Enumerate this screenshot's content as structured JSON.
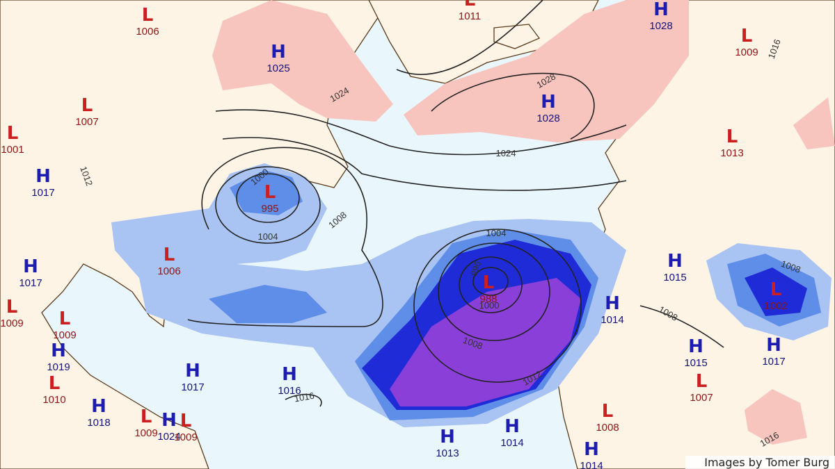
{
  "centers": [
    {
      "type": "L",
      "value": 1006
    },
    {
      "type": "L",
      "value": 1011
    },
    {
      "type": "H",
      "value": 1028
    },
    {
      "type": "L",
      "value": 1009
    },
    {
      "type": "H",
      "value": 1025
    },
    {
      "type": "L",
      "value": 1007
    },
    {
      "type": "H",
      "value": 1028
    },
    {
      "type": "L",
      "value": 1013
    },
    {
      "type": "L",
      "value": 1001
    },
    {
      "type": "H",
      "value": 1017
    },
    {
      "type": "L",
      "value": 995
    },
    {
      "type": "L",
      "value": 1006
    },
    {
      "type": "H",
      "value": 1017
    },
    {
      "type": "H",
      "value": 1015
    },
    {
      "type": "L",
      "value": 988
    },
    {
      "type": "L",
      "value": 1002
    },
    {
      "type": "H",
      "value": 1014
    },
    {
      "type": "L",
      "value": 1009
    },
    {
      "type": "L",
      "value": 1009
    },
    {
      "type": "H",
      "value": 1019
    },
    {
      "type": "H",
      "value": 1015
    },
    {
      "type": "H",
      "value": 1017
    },
    {
      "type": "H",
      "value": 1017
    },
    {
      "type": "H",
      "value": 1016
    },
    {
      "type": "L",
      "value": 1010
    },
    {
      "type": "L",
      "value": 1007
    },
    {
      "type": "H",
      "value": 1018
    },
    {
      "type": "L",
      "value": 1008
    },
    {
      "type": "L",
      "value": 1009
    },
    {
      "type": "H",
      "value": 1024
    },
    {
      "type": "L",
      "value": 1009
    },
    {
      "type": "H",
      "value": 1014
    },
    {
      "type": "H",
      "value": 1013
    },
    {
      "type": "H",
      "value": 1014
    }
  ],
  "isobar_labels": [
    1024,
    1024,
    1012,
    1000,
    1004,
    1008,
    1004,
    996,
    1000,
    1008,
    1012,
    1008,
    1016,
    1028,
    1016,
    1008,
    1016
  ],
  "credit": "Images by Tomer Burg"
}
